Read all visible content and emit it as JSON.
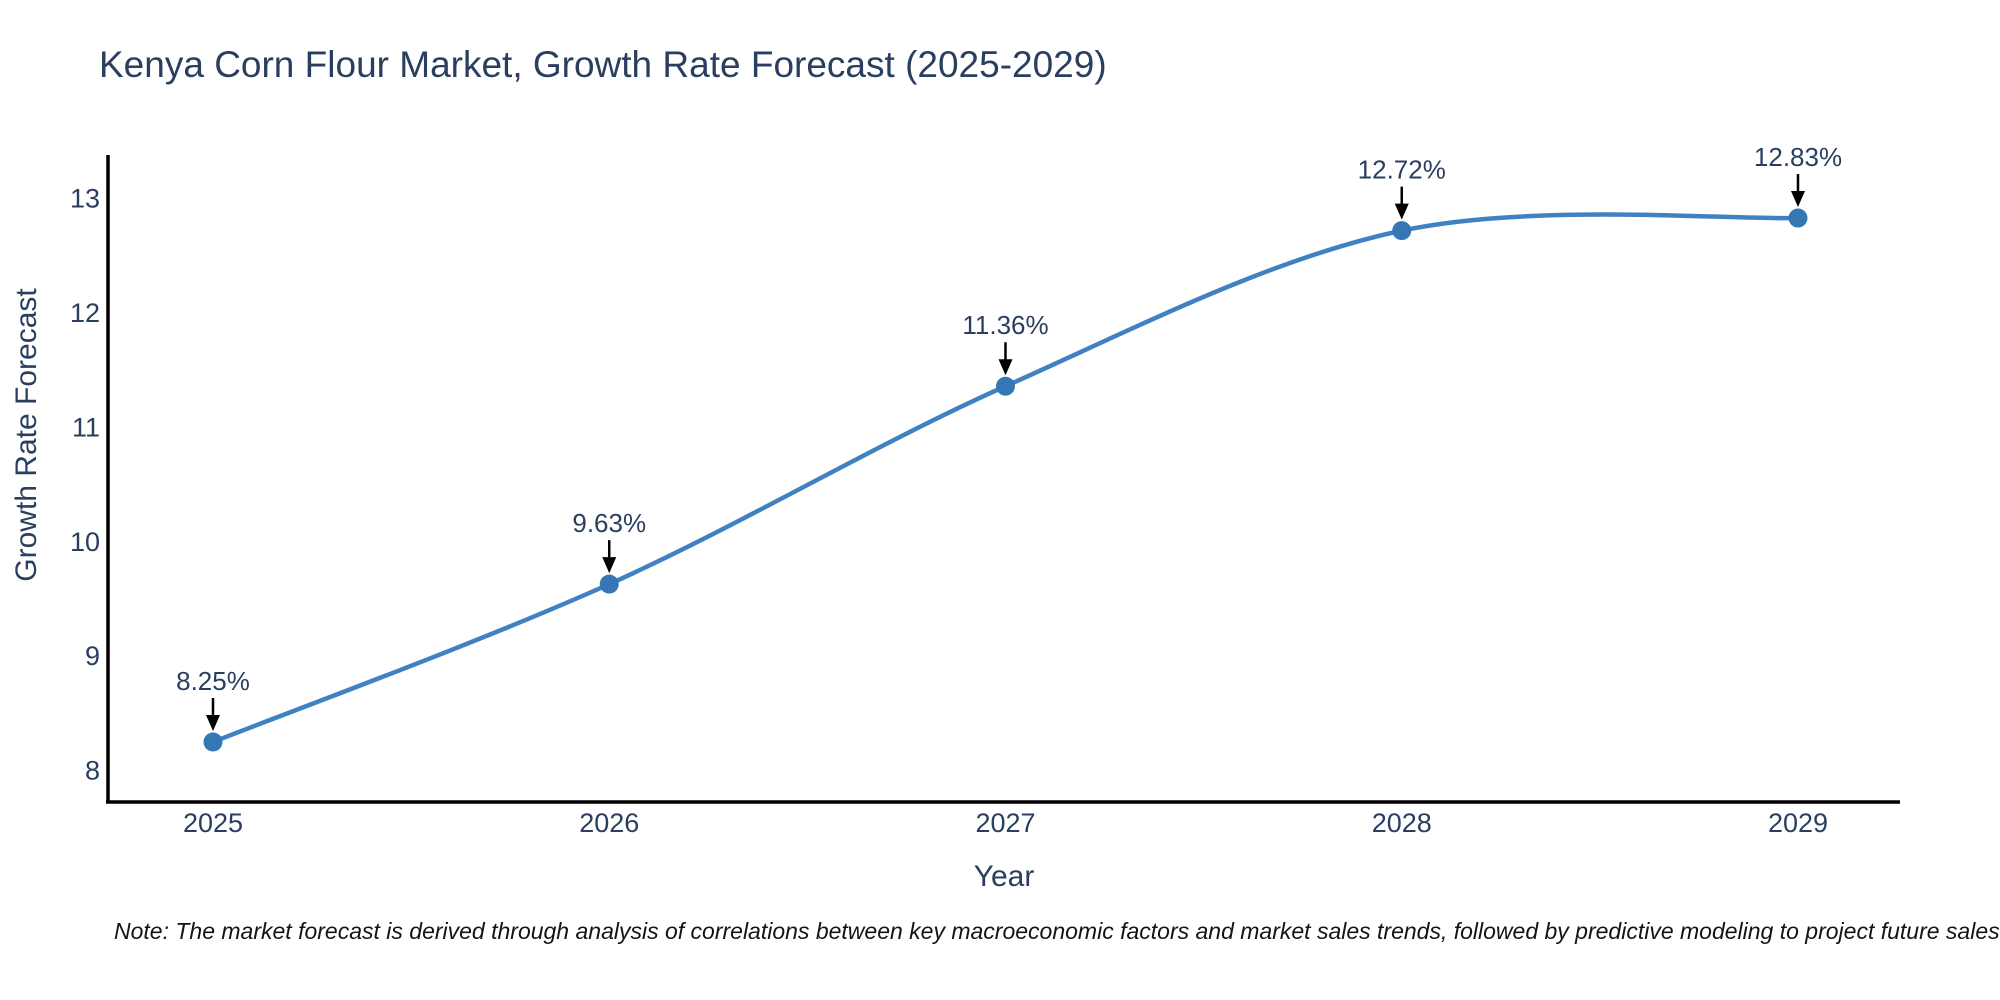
{
  "chart_data": {
    "type": "line",
    "title": "Kenya Corn Flour Market, Growth Rate Forecast (2025-2029)",
    "xlabel": "Year",
    "ylabel": "Growth Rate Forecast",
    "x": [
      2025,
      2026,
      2027,
      2028,
      2029
    ],
    "xticklabels": [
      "2025",
      "2026",
      "2027",
      "2028",
      "2029"
    ],
    "series": [
      {
        "name": "Growth Rate Forecast",
        "values": [
          8.25,
          9.63,
          11.36,
          12.72,
          12.83
        ]
      }
    ],
    "point_labels": [
      "8.25%",
      "9.63%",
      "11.36%",
      "12.72%",
      "12.83%"
    ],
    "yticks": [
      8,
      9,
      10,
      11,
      12,
      13
    ],
    "yticklabels": [
      "8",
      "9",
      "10",
      "11",
      "12",
      "13"
    ],
    "ylim": [
      7.73,
      13.38
    ],
    "grid": false,
    "legend": "none",
    "curve": "spline",
    "colors": {
      "line": "#3f81c1",
      "marker": "#3576b5",
      "axis": "#000000",
      "text": "#2a3f5f",
      "annotation_arrow": "#000000",
      "note_text": "#141414"
    }
  },
  "note": {
    "text": "Note: The market forecast is derived through analysis of correlations between key macroeconomic factors and market sales trends, followed by predictive modeling to project future sales."
  }
}
